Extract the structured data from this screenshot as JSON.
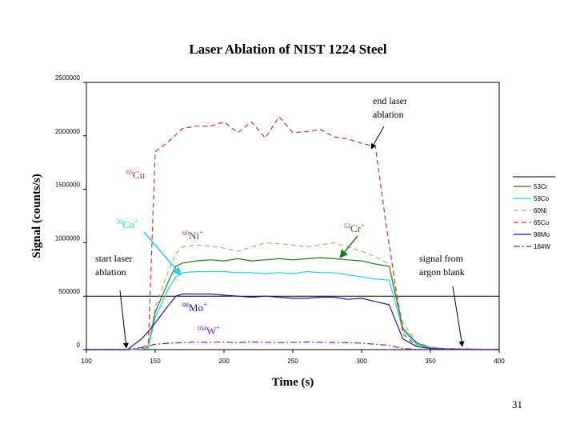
{
  "slide_number": "31",
  "chart_data": {
    "type": "line",
    "title": "Laser Ablation of NIST 1224 Steel",
    "xlabel": "Time (s)",
    "ylabel": "Signal (counts/s)",
    "xlim": [
      100,
      400
    ],
    "ylim": [
      0,
      2500000
    ],
    "x_ticks": [
      100,
      150,
      200,
      250,
      300,
      350,
      400
    ],
    "y_ticks": [
      0,
      500000,
      1000000,
      1500000,
      2000000,
      2500000
    ],
    "x_tick_labels": [
      "100",
      "150",
      "200",
      "250",
      "300",
      "350",
      "400"
    ],
    "y_tick_labels": [
      "0",
      "500000",
      "1000000",
      "1500000",
      "2000000",
      "2500000"
    ],
    "reference_line_y": 500000,
    "grid": false,
    "legend_position": "right",
    "series": [
      {
        "name": "53Cr",
        "color": "#1e7a1e",
        "dash": "solid",
        "x": [
          100,
          130,
          140,
          145,
          150,
          160,
          165,
          170,
          180,
          190,
          200,
          210,
          220,
          230,
          240,
          250,
          260,
          270,
          280,
          290,
          300,
          310,
          320,
          330,
          340,
          350,
          360,
          380,
          400
        ],
        "y": [
          0,
          0,
          5000,
          20000,
          350000,
          650000,
          780000,
          810000,
          830000,
          840000,
          830000,
          850000,
          830000,
          840000,
          850000,
          840000,
          850000,
          860000,
          850000,
          840000,
          830000,
          800000,
          780000,
          200000,
          60000,
          20000,
          10000,
          5000,
          0
        ]
      },
      {
        "name": "59Co",
        "color": "#22cfe6",
        "dash": "solid",
        "x": [
          100,
          130,
          140,
          145,
          150,
          160,
          165,
          170,
          180,
          190,
          200,
          210,
          220,
          230,
          240,
          250,
          260,
          270,
          280,
          290,
          300,
          310,
          320,
          330,
          340,
          350,
          360,
          380,
          400
        ],
        "y": [
          0,
          0,
          4000,
          15000,
          300000,
          580000,
          680000,
          720000,
          730000,
          730000,
          730000,
          720000,
          720000,
          710000,
          720000,
          710000,
          730000,
          720000,
          720000,
          700000,
          680000,
          660000,
          650000,
          180000,
          50000,
          15000,
          5000,
          2000,
          0
        ]
      },
      {
        "name": "60Ni",
        "color": "#c8a37e",
        "dash": "dash",
        "x": [
          100,
          130,
          140,
          145,
          150,
          160,
          165,
          170,
          180,
          190,
          200,
          210,
          220,
          230,
          240,
          250,
          260,
          270,
          280,
          290,
          300,
          310,
          320,
          330,
          340,
          350,
          360,
          380,
          400
        ],
        "y": [
          0,
          0,
          6000,
          25000,
          400000,
          750000,
          900000,
          960000,
          980000,
          970000,
          950000,
          920000,
          960000,
          1000000,
          990000,
          980000,
          960000,
          980000,
          1000000,
          960000,
          920000,
          870000,
          800000,
          250000,
          70000,
          25000,
          10000,
          5000,
          0
        ]
      },
      {
        "name": "65Cu",
        "color": "#c0392b",
        "dash": "dash",
        "x": [
          100,
          120,
          130,
          140,
          145,
          150,
          160,
          170,
          180,
          190,
          200,
          210,
          220,
          230,
          240,
          250,
          260,
          270,
          280,
          290,
          300,
          310,
          318,
          330,
          340,
          350,
          360,
          380,
          400
        ],
        "y": [
          0,
          0,
          0,
          10000,
          50000,
          1850000,
          1950000,
          2070000,
          2090000,
          2090000,
          2130000,
          2030000,
          2130000,
          1980000,
          2180000,
          2030000,
          2040000,
          2060000,
          1990000,
          1970000,
          1930000,
          1900000,
          1150000,
          150000,
          30000,
          10000,
          5000,
          0,
          0
        ]
      },
      {
        "name": "98Mo",
        "color": "#1a1a8c",
        "dash": "solid",
        "x": [
          100,
          130,
          140,
          145,
          150,
          160,
          165,
          170,
          180,
          190,
          200,
          210,
          220,
          230,
          240,
          250,
          260,
          270,
          280,
          290,
          300,
          310,
          320,
          330,
          340,
          350,
          360,
          380,
          400
        ],
        "y": [
          0,
          0,
          100000,
          170000,
          250000,
          420000,
          500000,
          520000,
          520000,
          520000,
          510000,
          500000,
          490000,
          500000,
          490000,
          480000,
          480000,
          490000,
          490000,
          470000,
          480000,
          450000,
          420000,
          100000,
          30000,
          10000,
          5000,
          2000,
          0
        ]
      },
      {
        "name": "184W",
        "color": "#7a1fa2",
        "dash": "dashdot",
        "x": [
          100,
          130,
          140,
          150,
          160,
          170,
          180,
          190,
          200,
          210,
          220,
          230,
          240,
          250,
          260,
          270,
          280,
          290,
          300,
          310,
          320,
          330,
          340,
          350,
          400
        ],
        "y": [
          0,
          0,
          20000,
          50000,
          60000,
          65000,
          70000,
          68000,
          70000,
          65000,
          70000,
          68000,
          65000,
          68000,
          70000,
          68000,
          65000,
          66000,
          60000,
          50000,
          40000,
          10000,
          3000,
          0,
          0
        ]
      }
    ],
    "annotations": [
      {
        "id": "cu",
        "text": "65Cu"
      },
      {
        "id": "co",
        "text": "59Co+"
      },
      {
        "id": "ni",
        "text": "60Ni+"
      },
      {
        "id": "cr",
        "text": "53Cr+"
      },
      {
        "id": "mo",
        "text": "98Mo+"
      },
      {
        "id": "w",
        "text": "184W+"
      },
      {
        "id": "start",
        "text": "start laser ablation"
      },
      {
        "id": "end",
        "text": "end laser ablation"
      },
      {
        "id": "blank",
        "text": "signal from argon blank"
      }
    ]
  }
}
